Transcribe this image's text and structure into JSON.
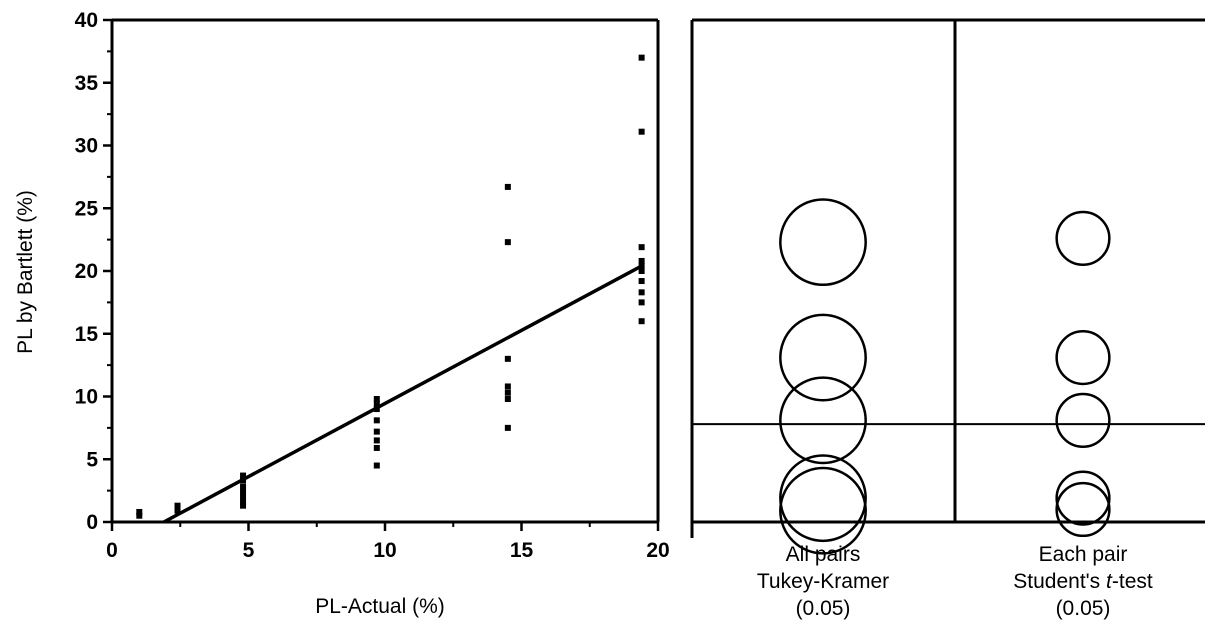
{
  "chart_data": [
    {
      "type": "scatter",
      "xlabel": "PL-Actual (%)",
      "ylabel": "PL by Bartlett (%)",
      "xlim": [
        0,
        20
      ],
      "ylim": [
        0,
        40
      ],
      "x_ticks": [
        "0",
        "5",
        "10",
        "15",
        "20"
      ],
      "y_ticks": [
        "0",
        "5",
        "10",
        "15",
        "20",
        "25",
        "30",
        "35",
        "40"
      ],
      "points": [
        {
          "x": 1,
          "y": 0.5
        },
        {
          "x": 1,
          "y": 0.8
        },
        {
          "x": 2.4,
          "y": 0.9
        },
        {
          "x": 2.4,
          "y": 1.3
        },
        {
          "x": 4.8,
          "y": 1.3
        },
        {
          "x": 4.8,
          "y": 1.6
        },
        {
          "x": 4.8,
          "y": 2.0
        },
        {
          "x": 4.8,
          "y": 2.4
        },
        {
          "x": 4.8,
          "y": 2.8
        },
        {
          "x": 4.8,
          "y": 3.3
        },
        {
          "x": 4.8,
          "y": 3.7
        },
        {
          "x": 9.7,
          "y": 4.5
        },
        {
          "x": 9.7,
          "y": 5.9
        },
        {
          "x": 9.7,
          "y": 6.5
        },
        {
          "x": 9.7,
          "y": 7.2
        },
        {
          "x": 9.7,
          "y": 8.1
        },
        {
          "x": 9.7,
          "y": 9.0
        },
        {
          "x": 9.7,
          "y": 9.4
        },
        {
          "x": 9.7,
          "y": 9.8
        },
        {
          "x": 14.5,
          "y": 7.5
        },
        {
          "x": 14.5,
          "y": 9.8
        },
        {
          "x": 14.5,
          "y": 10.3
        },
        {
          "x": 14.5,
          "y": 10.8
        },
        {
          "x": 14.5,
          "y": 13.0
        },
        {
          "x": 14.5,
          "y": 22.3
        },
        {
          "x": 14.5,
          "y": 26.7
        },
        {
          "x": 19.4,
          "y": 16.0
        },
        {
          "x": 19.4,
          "y": 17.5
        },
        {
          "x": 19.4,
          "y": 18.3
        },
        {
          "x": 19.4,
          "y": 19.2
        },
        {
          "x": 19.4,
          "y": 20.0
        },
        {
          "x": 19.4,
          "y": 20.4
        },
        {
          "x": 19.4,
          "y": 20.8
        },
        {
          "x": 19.4,
          "y": 21.9
        },
        {
          "x": 19.4,
          "y": 31.1
        },
        {
          "x": 19.4,
          "y": 37.0
        }
      ],
      "fit_line": {
        "x": [
          1.9,
          19.4
        ],
        "y": [
          0,
          20.4
        ]
      }
    },
    {
      "type": "comparison-circles",
      "ylim": [
        0,
        40
      ],
      "reference_line_y": 7.8,
      "groups": [
        {
          "label_lines": [
            "All pairs",
            "Tukey-Kramer",
            "(0.05)"
          ],
          "circles": [
            {
              "center": 22.3,
              "radius": 3.4
            },
            {
              "center": 13.1,
              "radius": 3.4
            },
            {
              "center": 8.1,
              "radius": 3.4
            },
            {
              "center": 1.9,
              "radius": 3.4
            },
            {
              "center": 0.9,
              "radius": 3.4
            }
          ]
        },
        {
          "label_lines": [
            "Each pair",
            "Student's t-test",
            "(0.05)"
          ],
          "italic_word": "t",
          "circles": [
            {
              "center": 22.6,
              "radius": 2.1
            },
            {
              "center": 13.1,
              "radius": 2.1
            },
            {
              "center": 8.1,
              "radius": 2.1
            },
            {
              "center": 1.9,
              "radius": 2.1
            },
            {
              "center": 1.0,
              "radius": 2.1
            }
          ]
        }
      ]
    }
  ]
}
